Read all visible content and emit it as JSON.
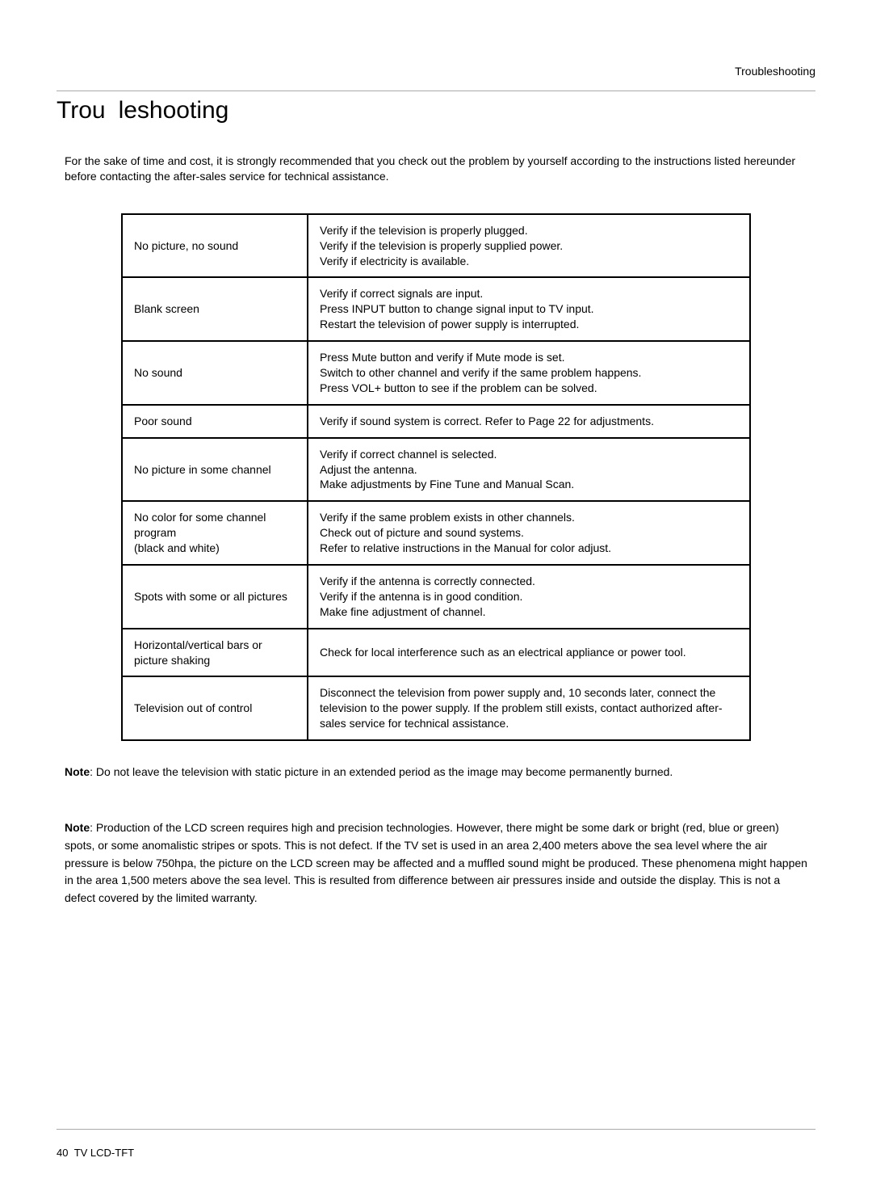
{
  "header": {
    "section": "Troubleshooting"
  },
  "title_part1": "Trou",
  "title_part2": "leshooting",
  "intro": "For the sake of time and cost, it is strongly recommended that you check out the problem by yourself according to the instructions listed hereunder before contacting the after-sales service for technical assistance.",
  "rows": [
    {
      "issue": "No picture, no sound",
      "solution": "Verify if the television is properly plugged.\nVerify if the television is properly supplied power.\nVerify if electricity is available."
    },
    {
      "issue": "Blank screen",
      "solution": "Verify if correct signals are input.\nPress INPUT button to change signal input to TV input.\nRestart the television of power supply is interrupted."
    },
    {
      "issue": "No sound",
      "solution": "Press Mute button and verify if Mute mode is set.\nSwitch to other channel and verify if the same problem happens.\nPress VOL+ button to see if the problem can be solved."
    },
    {
      "issue": "Poor sound",
      "solution": "Verify if sound system is correct. Refer to Page 22 for adjustments."
    },
    {
      "issue": "No picture in some channel",
      "solution": "Verify if correct channel is selected.\nAdjust the antenna.\nMake adjustments by Fine Tune and Manual Scan."
    },
    {
      "issue": "No color for some channel program\n(black and white)",
      "solution": "Verify if the same problem exists in other channels.\nCheck out of picture and sound systems.\nRefer to relative instructions in the Manual for color adjust."
    },
    {
      "issue": "Spots with some or all pictures",
      "solution": "Verify if the antenna is correctly connected.\nVerify if the antenna is in good condition.\nMake fine adjustment of channel."
    },
    {
      "issue": "Horizontal/vertical bars or picture shaking",
      "solution": "Check for local interference such as an electrical appliance or power tool."
    },
    {
      "issue": "Television out of control",
      "solution": "Disconnect the television from power supply and, 10 seconds later, connect the television to the power supply. If the problem still exists, contact authorized after-sales service for technical assistance."
    }
  ],
  "note1_label": "Note",
  "note1_text": ": Do not leave the television with static picture in an extended period as the image may become permanently burned.",
  "note2_label": "Note",
  "note2_text": ": Production of the LCD screen requires high and precision technologies. However, there might be some dark or bright (red, blue or green) spots, or some anomalistic stripes or spots. This is not defect. If the TV set is used in an area 2,400 meters above the sea level where the air pressure is below 750hpa, the picture on the LCD screen may be affected and a muffled sound might be produced. These phenomena might happen in the area 1,500 meters above the sea level. This is resulted from difference between air pressures inside and outside the display. This is not a defect covered by the limited warranty.",
  "footer": {
    "page": "40",
    "doc": "TV LCD-TFT"
  }
}
